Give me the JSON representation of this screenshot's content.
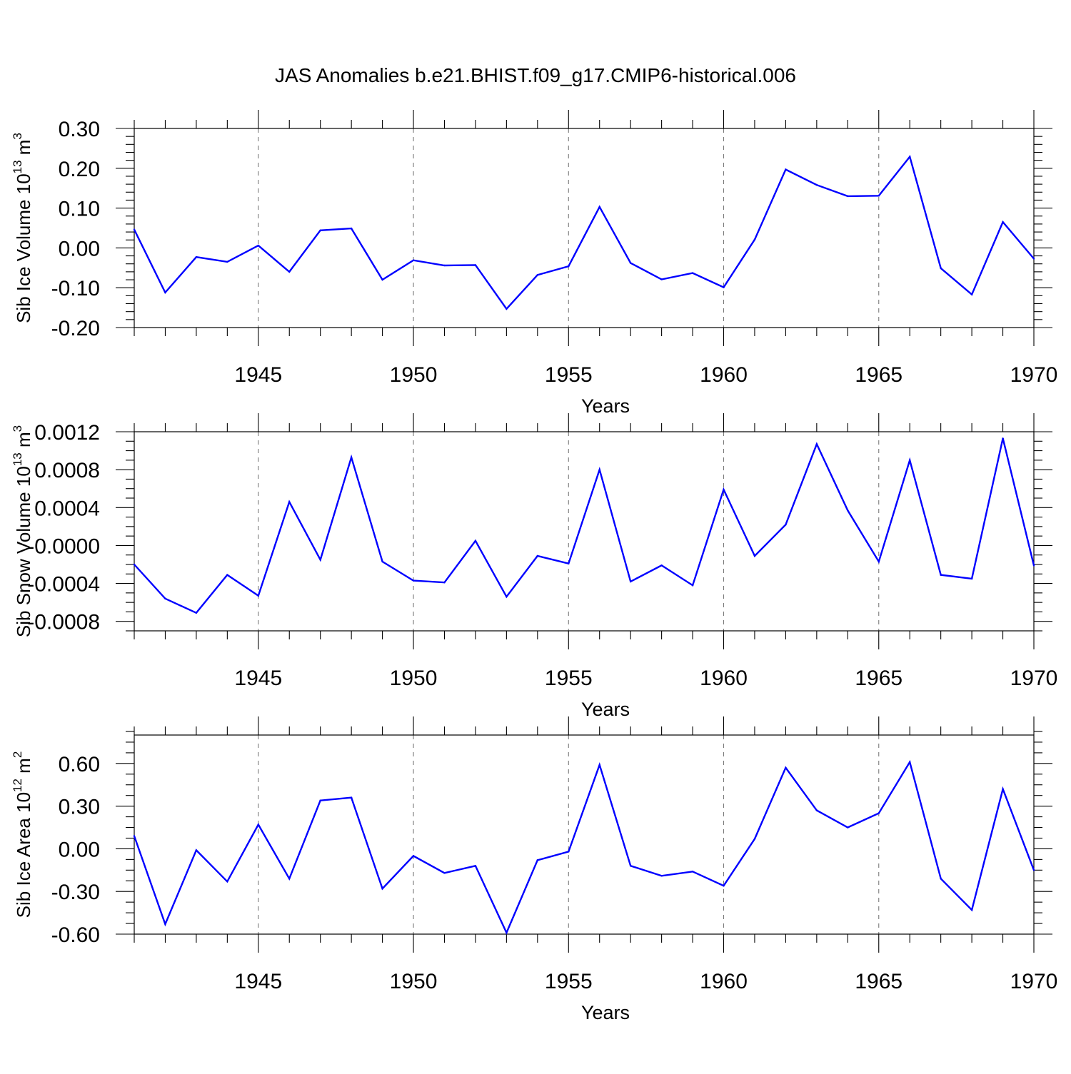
{
  "page": {
    "title": "JAS Anomalies b.e21.BHIST.f09_g17.CMIP6-historical.006"
  },
  "style": {
    "line_color": "#0000ff",
    "grid_color": "#7a7a7a"
  },
  "chart_data": [
    {
      "type": "line",
      "title": "JAS Anomalies b.e21.BHIST.f09_g17.CMIP6-historical.006",
      "xlabel": "Years",
      "ylabel": "Sib Ice Volume 10",
      "ylabel_exp": "13",
      "ylabel_unit": " m",
      "ylabel_unit_exp": "3",
      "xlim": [
        1941,
        1970
      ],
      "ylim": [
        -0.2,
        0.3
      ],
      "xticks": [
        1945,
        1950,
        1955,
        1960,
        1965,
        1970
      ],
      "xtick_labels": [
        "1945",
        "1950",
        "1955",
        "1960",
        "1965",
        "1970"
      ],
      "yticks": [
        -0.2,
        -0.1,
        0.0,
        0.1,
        0.2,
        0.3
      ],
      "ytick_labels": [
        "-0.20",
        "-0.10",
        "0.00",
        "0.10",
        "0.20",
        "0.30"
      ],
      "grid": "vertical dashed at major x ticks",
      "x": [
        1941,
        1942,
        1943,
        1944,
        1945,
        1946,
        1947,
        1948,
        1949,
        1950,
        1951,
        1952,
        1953,
        1954,
        1955,
        1956,
        1957,
        1958,
        1959,
        1960,
        1961,
        1962,
        1963,
        1964,
        1965,
        1966,
        1967,
        1968,
        1969,
        1970
      ],
      "series": [
        {
          "values": [
            0.046,
            -0.112,
            -0.023,
            -0.035,
            0.006,
            -0.06,
            0.044,
            0.049,
            -0.08,
            -0.031,
            -0.044,
            -0.043,
            -0.153,
            -0.068,
            -0.046,
            0.103,
            -0.038,
            -0.079,
            -0.063,
            -0.099,
            0.021,
            0.197,
            0.158,
            0.13,
            0.131,
            0.229,
            -0.051,
            -0.117,
            0.065,
            -0.027
          ]
        }
      ]
    },
    {
      "type": "line",
      "xlabel": "Years",
      "ylabel": "Sib Snow Volume 10",
      "ylabel_exp": "13",
      "ylabel_unit": " m",
      "ylabel_unit_exp": "3",
      "xlim": [
        1941,
        1970
      ],
      "ylim": [
        -0.0009,
        0.0012
      ],
      "xticks": [
        1945,
        1950,
        1955,
        1960,
        1965,
        1970
      ],
      "xtick_labels": [
        "1945",
        "1950",
        "1955",
        "1960",
        "1965",
        "1970"
      ],
      "yticks": [
        -0.0008,
        -0.0004,
        0.0,
        0.0004,
        0.0008,
        0.0012
      ],
      "ytick_labels": [
        "-0.0008",
        "-0.0004",
        "-0.0000",
        "0.0004",
        "0.0008",
        "0.0012"
      ],
      "grid": "vertical dashed at major x ticks",
      "x": [
        1941,
        1942,
        1943,
        1944,
        1945,
        1946,
        1947,
        1948,
        1949,
        1950,
        1951,
        1952,
        1953,
        1954,
        1955,
        1956,
        1957,
        1958,
        1959,
        1960,
        1961,
        1962,
        1963,
        1964,
        1965,
        1966,
        1967,
        1968,
        1969,
        1970
      ],
      "series": [
        {
          "values": [
            -0.0002,
            -0.00056,
            -0.00071,
            -0.00031,
            -0.00053,
            0.00046,
            -0.00015,
            0.00093,
            -0.00017,
            -0.00037,
            -0.00039,
            5e-05,
            -0.00054,
            -0.00011,
            -0.00019,
            0.0008,
            -0.00038,
            -0.00021,
            -0.00042,
            0.00059,
            -0.00011,
            0.00022,
            0.00107,
            0.00037,
            -0.00017,
            0.0009,
            -0.00031,
            -0.00035,
            0.00113,
            -0.00021
          ]
        }
      ]
    },
    {
      "type": "line",
      "xlabel": "Years",
      "ylabel": "Sib Ice Area 10",
      "ylabel_exp": "12",
      "ylabel_unit": " m",
      "ylabel_unit_exp": "2",
      "xlim": [
        1941,
        1970
      ],
      "ylim": [
        -0.6,
        0.8
      ],
      "xticks": [
        1945,
        1950,
        1955,
        1960,
        1965,
        1970
      ],
      "xtick_labels": [
        "1945",
        "1950",
        "1955",
        "1960",
        "1965",
        "1970"
      ],
      "yticks": [
        -0.6,
        -0.3,
        0.0,
        0.3,
        0.6
      ],
      "ytick_labels": [
        "-0.60",
        "-0.30",
        "0.00",
        "0.30",
        "0.60"
      ],
      "grid": "vertical dashed at major x ticks",
      "x": [
        1941,
        1942,
        1943,
        1944,
        1945,
        1946,
        1947,
        1948,
        1949,
        1950,
        1951,
        1952,
        1953,
        1954,
        1955,
        1956,
        1957,
        1958,
        1959,
        1960,
        1961,
        1962,
        1963,
        1964,
        1965,
        1966,
        1967,
        1968,
        1969,
        1970
      ],
      "series": [
        {
          "values": [
            0.09,
            -0.53,
            -0.01,
            -0.23,
            0.17,
            -0.21,
            0.34,
            0.36,
            -0.28,
            -0.05,
            -0.17,
            -0.12,
            -0.59,
            -0.08,
            -0.02,
            0.59,
            -0.12,
            -0.19,
            -0.16,
            -0.26,
            0.07,
            0.57,
            0.27,
            0.15,
            0.25,
            0.61,
            -0.21,
            -0.43,
            0.42,
            -0.15
          ]
        }
      ]
    }
  ]
}
